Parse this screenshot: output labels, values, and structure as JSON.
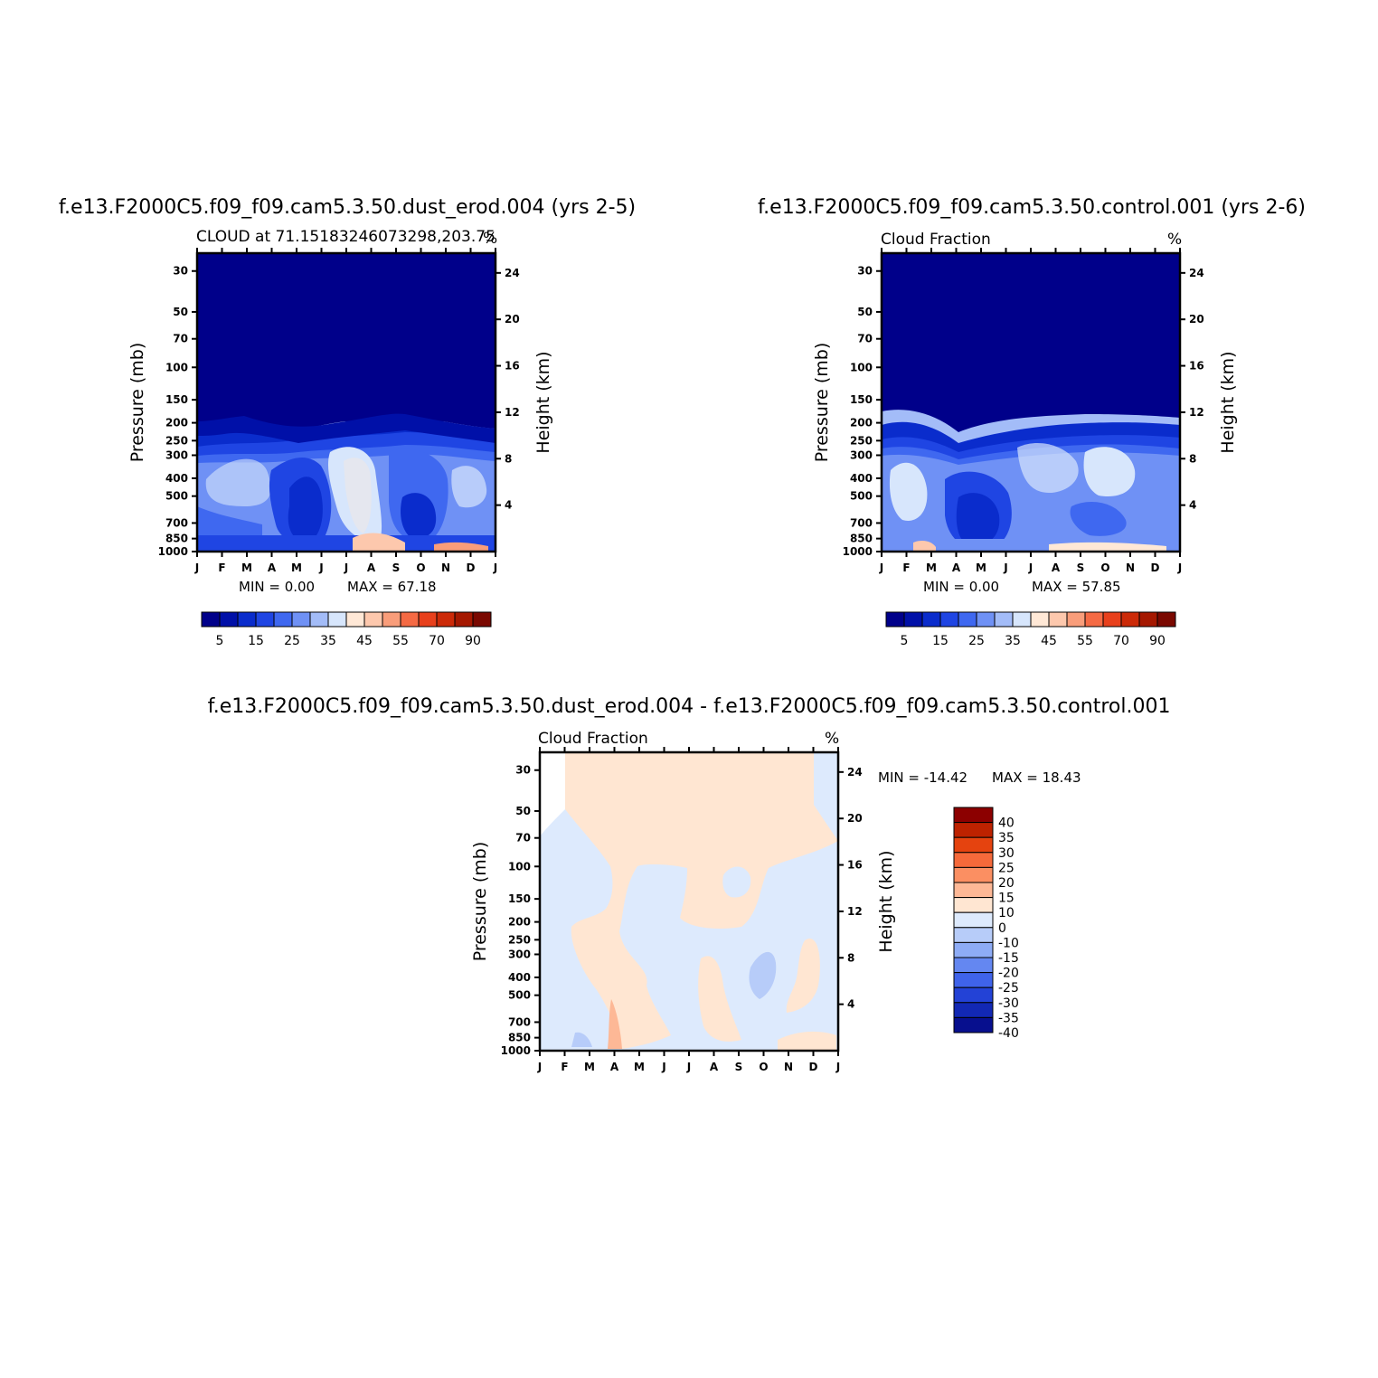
{
  "chart_data": [
    {
      "type": "heatmap",
      "title": "f.e13.F2000C5.f09_f09.cam5.3.50.dust_erod.004 (yrs 2-5)",
      "subtitle": "CLOUD at 71.15183246073298,203.75",
      "units": "%",
      "xlabel": "",
      "ylabel": "Pressure (mb)",
      "ylabel_right": "Height (km)",
      "x_ticks": [
        "J",
        "F",
        "M",
        "A",
        "M",
        "J",
        "J",
        "A",
        "S",
        "O",
        "N",
        "D",
        "J"
      ],
      "y_ticks": [
        "30",
        "50",
        "70",
        "100",
        "150",
        "200",
        "250",
        "300",
        "400",
        "500",
        "700",
        "850",
        "1000"
      ],
      "y_ticks_right": [
        "24",
        "20",
        "16",
        "12",
        "8",
        "4"
      ],
      "min_text": "MIN =    0.00",
      "max_text": "MAX =   67.18",
      "colorbar_labels": [
        "5",
        "15",
        "25",
        "35",
        "45",
        "55",
        "70",
        "90"
      ]
    },
    {
      "type": "heatmap",
      "title": "f.e13.F2000C5.f09_f09.cam5.3.50.control.001 (yrs 2-6)",
      "subtitle": "Cloud Fraction",
      "units": "%",
      "xlabel": "",
      "ylabel": "Pressure (mb)",
      "ylabel_right": "Height (km)",
      "x_ticks": [
        "J",
        "F",
        "M",
        "A",
        "M",
        "J",
        "J",
        "A",
        "S",
        "O",
        "N",
        "D",
        "J"
      ],
      "y_ticks": [
        "30",
        "50",
        "70",
        "100",
        "150",
        "200",
        "250",
        "300",
        "400",
        "500",
        "700",
        "850",
        "1000"
      ],
      "y_ticks_right": [
        "24",
        "20",
        "16",
        "12",
        "8",
        "4"
      ],
      "min_text": "MIN =    0.00",
      "max_text": "MAX =   57.85",
      "colorbar_labels": [
        "5",
        "15",
        "25",
        "35",
        "45",
        "55",
        "70",
        "90"
      ]
    },
    {
      "type": "heatmap",
      "title": "f.e13.F2000C5.f09_f09.cam5.3.50.dust_erod.004 - f.e13.F2000C5.f09_f09.cam5.3.50.control.001",
      "subtitle": "Cloud Fraction",
      "units": "%",
      "xlabel": "",
      "ylabel": "Pressure (mb)",
      "ylabel_right": "Height (km)",
      "x_ticks": [
        "J",
        "F",
        "M",
        "A",
        "M",
        "J",
        "J",
        "A",
        "S",
        "O",
        "N",
        "D",
        "J"
      ],
      "y_ticks": [
        "30",
        "50",
        "70",
        "100",
        "150",
        "200",
        "250",
        "300",
        "400",
        "500",
        "700",
        "850",
        "1000"
      ],
      "y_ticks_right": [
        "24",
        "20",
        "16",
        "12",
        "8",
        "4"
      ],
      "min_text": "MIN = -14.42",
      "max_text": "MAX =   18.43",
      "colorbar_labels": [
        "40",
        "35",
        "30",
        "25",
        "20",
        "15",
        "10",
        "0",
        "-10",
        "-15",
        "-20",
        "-25",
        "-30",
        "-35",
        "-40"
      ]
    }
  ],
  "palettes": {
    "cloud": [
      "#00008a",
      "#0010a8",
      "#0a2ccc",
      "#1f45e3",
      "#3f68f0",
      "#6f91f5",
      "#a3bcf8",
      "#d7e6fc",
      "#ffe8d6",
      "#fdc8ad",
      "#f99d7a",
      "#f56a44",
      "#e8401c",
      "#cc2a08",
      "#a51800",
      "#7a0800"
    ],
    "diff": [
      "#8c0000",
      "#bd2200",
      "#e5430f",
      "#f5693a",
      "#fb8f62",
      "#fdb896",
      "#ffe6d2",
      "#ddeafd",
      "#b7ccf9",
      "#8eacf6",
      "#6487f1",
      "#3f63ea",
      "#2342d6",
      "#1228b4",
      "#070f8e"
    ]
  }
}
